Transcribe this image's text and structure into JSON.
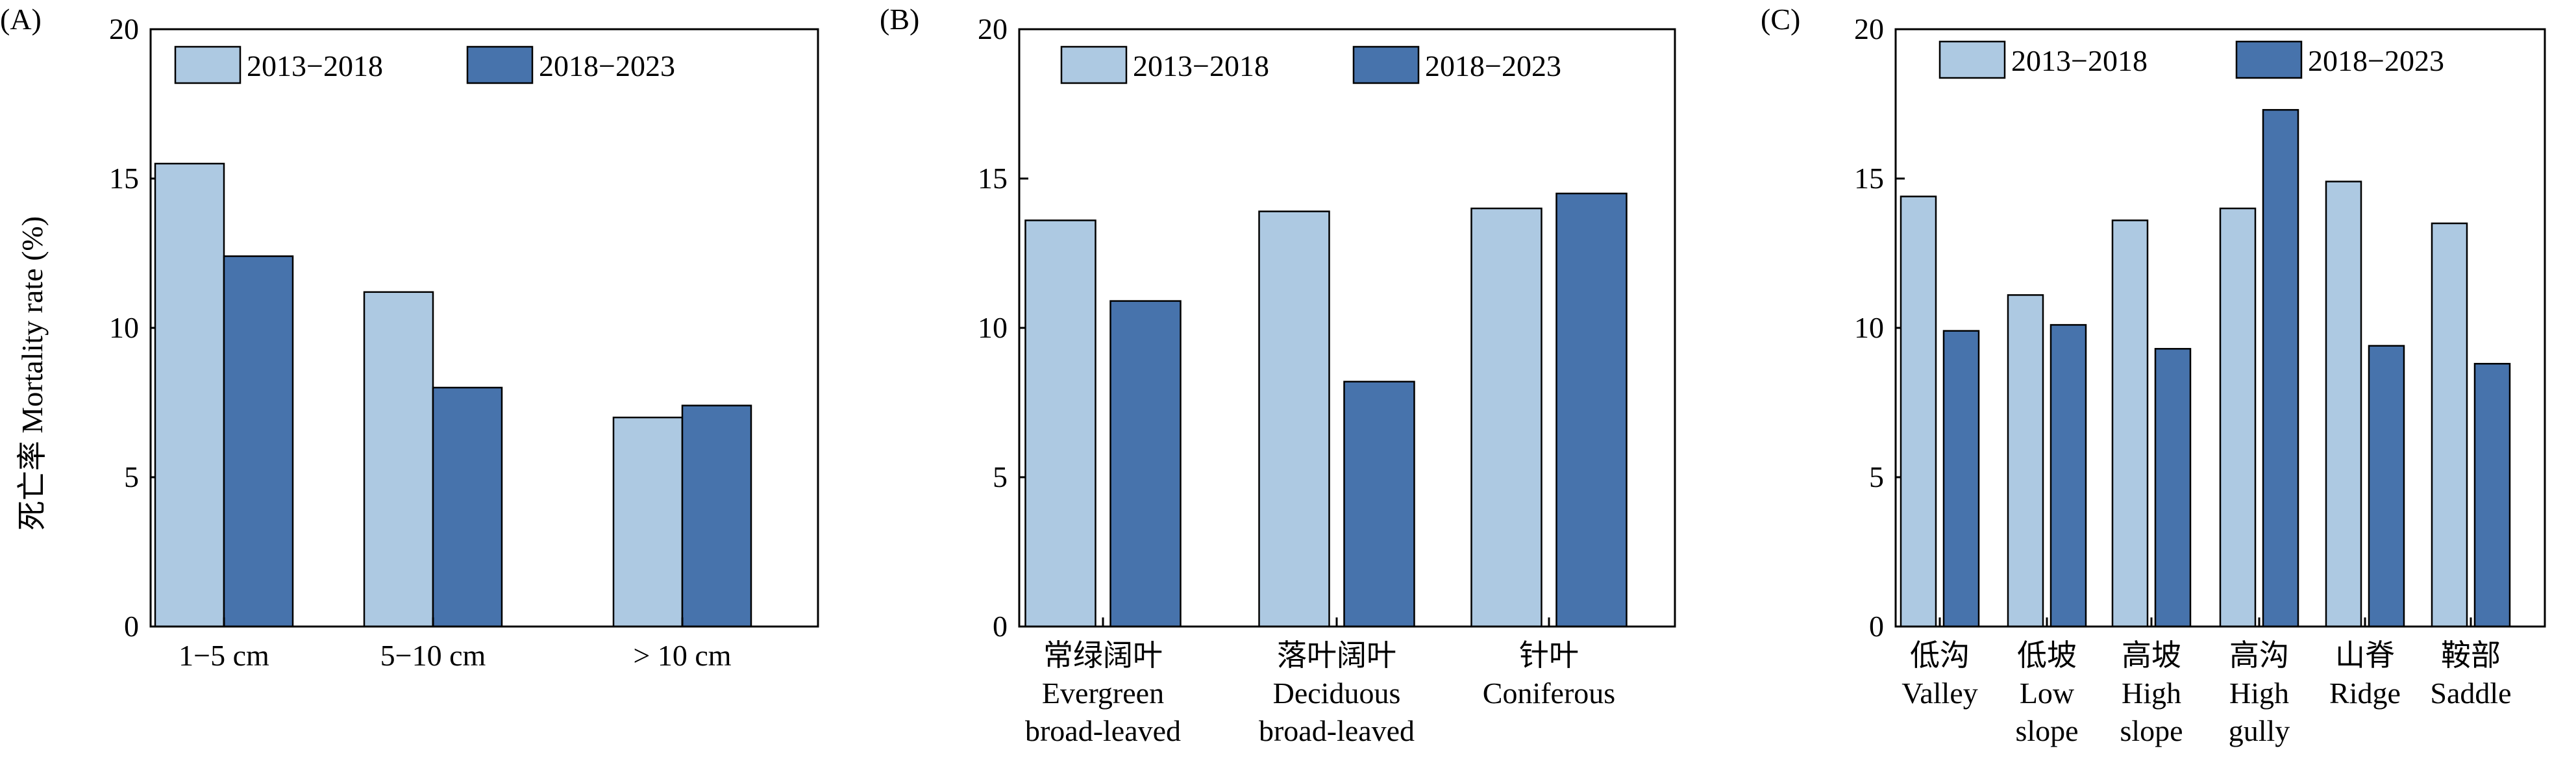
{
  "shared_ylabel": "死亡率 Mortality rate (%)",
  "colors": {
    "series1": "#adc9e2",
    "series2": "#4773ac",
    "stroke": "#000000"
  },
  "chart_data": [
    {
      "panel_label": "(A)",
      "type": "bar",
      "ylim": [
        0,
        20
      ],
      "yticks": [
        "0",
        "5",
        "10",
        "15",
        "20"
      ],
      "legend_position": "top",
      "categories": [
        [
          "1−5 cm"
        ],
        [
          "5−10 cm"
        ],
        [
          "> 10 cm"
        ]
      ],
      "series": [
        {
          "name": "2013−2018",
          "values": [
            15.5,
            11.2,
            7.0
          ]
        },
        {
          "name": "2018−2023",
          "values": [
            12.4,
            8.0,
            7.4
          ]
        }
      ]
    },
    {
      "panel_label": "(B)",
      "type": "bar",
      "ylim": [
        0,
        20
      ],
      "yticks": [
        "0",
        "5",
        "10",
        "15",
        "20"
      ],
      "legend_position": "top",
      "categories": [
        [
          "常绿阔叶",
          "Evergreen",
          "broad-leaved"
        ],
        [
          "落叶阔叶",
          "Deciduous",
          "broad-leaved"
        ],
        [
          "针叶",
          "Coniferous"
        ]
      ],
      "series": [
        {
          "name": "2013−2018",
          "values": [
            13.6,
            13.9,
            14.0
          ]
        },
        {
          "name": "2018−2023",
          "values": [
            10.9,
            8.2,
            14.5
          ]
        }
      ]
    },
    {
      "panel_label": "(C)",
      "type": "bar",
      "ylim": [
        0,
        20
      ],
      "yticks": [
        "0",
        "5",
        "10",
        "15",
        "20"
      ],
      "legend_position": "top",
      "categories": [
        [
          "低沟",
          "Valley"
        ],
        [
          "低坡",
          "Low",
          "slope"
        ],
        [
          "高坡",
          "High",
          "slope"
        ],
        [
          "高沟",
          "High",
          "gully"
        ],
        [
          "山脊",
          "Ridge"
        ],
        [
          "鞍部",
          "Saddle"
        ]
      ],
      "series": [
        {
          "name": "2013−2018",
          "values": [
            14.4,
            11.1,
            13.6,
            14.0,
            14.9,
            13.5
          ]
        },
        {
          "name": "2018−2023",
          "values": [
            9.9,
            10.1,
            9.3,
            17.3,
            9.4,
            8.8
          ]
        }
      ]
    }
  ]
}
